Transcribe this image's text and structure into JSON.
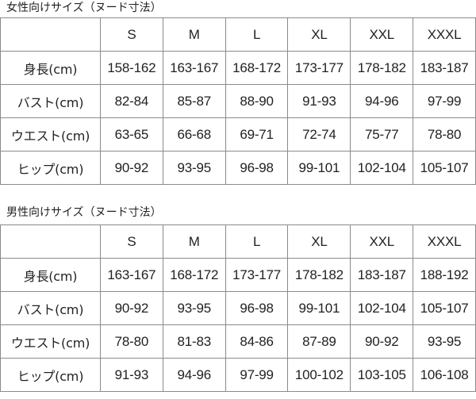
{
  "tables": [
    {
      "title": "女性向けサイズ（ヌード寸法）",
      "sizes": [
        "S",
        "M",
        "L",
        "XL",
        "XXL",
        "XXXL"
      ],
      "rows": [
        {
          "label": "身長(cm)",
          "values": [
            "158-162",
            "163-167",
            "168-172",
            "173-177",
            "178-182",
            "183-187"
          ]
        },
        {
          "label": "バスト(cm)",
          "values": [
            "82-84",
            "85-87",
            "88-90",
            "91-93",
            "94-96",
            "97-99"
          ]
        },
        {
          "label": "ウエスト(cm)",
          "values": [
            "63-65",
            "66-68",
            "69-71",
            "72-74",
            "75-77",
            "78-80"
          ]
        },
        {
          "label": "ヒップ(cm)",
          "values": [
            "90-92",
            "93-95",
            "96-98",
            "99-101",
            "102-104",
            "105-107"
          ]
        }
      ]
    },
    {
      "title": "男性向けサイズ（ヌード寸法）",
      "sizes": [
        "S",
        "M",
        "L",
        "XL",
        "XXL",
        "XXXL"
      ],
      "rows": [
        {
          "label": "身長(cm)",
          "values": [
            "163-167",
            "168-172",
            "173-177",
            "178-182",
            "183-187",
            "188-192"
          ]
        },
        {
          "label": "バスト(cm)",
          "values": [
            "90-92",
            "93-95",
            "96-98",
            "99-101",
            "102-104",
            "105-107"
          ]
        },
        {
          "label": "ウエスト(cm)",
          "values": [
            "78-80",
            "81-83",
            "84-86",
            "87-89",
            "90-92",
            "93-95"
          ]
        },
        {
          "label": "ヒップ(cm)",
          "values": [
            "91-93",
            "94-96",
            "97-99",
            "100-102",
            "103-105",
            "106-108"
          ]
        }
      ]
    }
  ]
}
